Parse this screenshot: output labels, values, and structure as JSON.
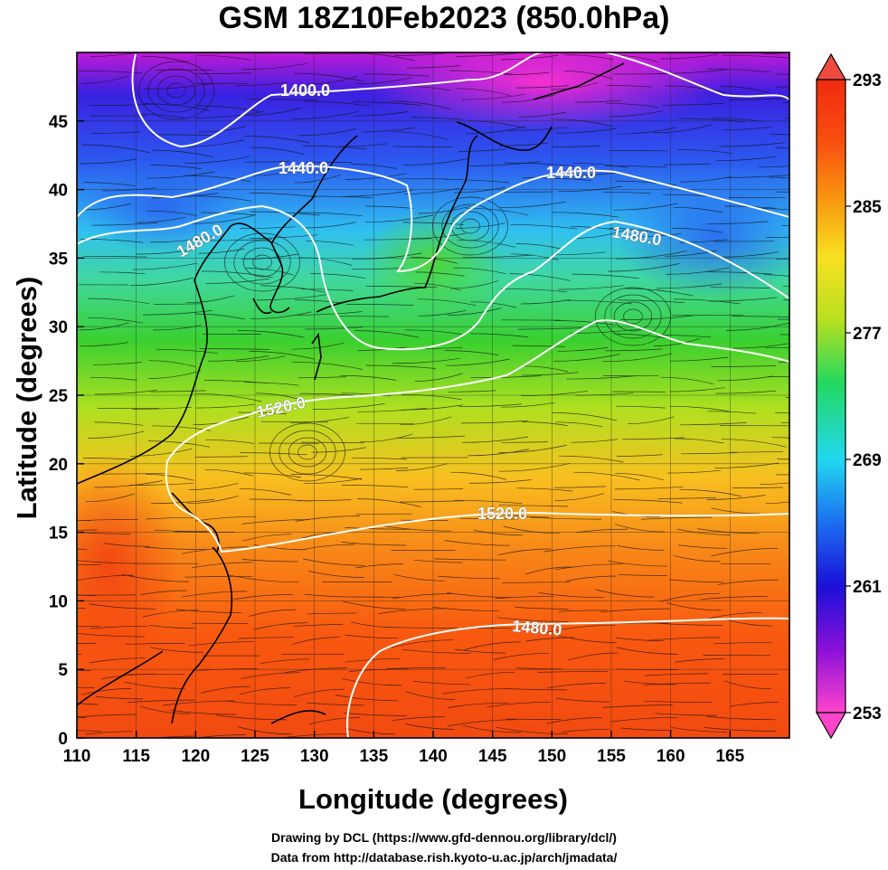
{
  "title": "GSM 18Z10Feb2023 (850.0hPa)",
  "map": {
    "xlabel": "Longitude (degrees)",
    "ylabel": "Latitude  (degrees)",
    "lon_range": [
      110,
      170
    ],
    "lat_range": [
      0,
      50
    ],
    "lon_ticks": [
      "110",
      "115",
      "120",
      "125",
      "130",
      "135",
      "140",
      "145",
      "150",
      "155",
      "160",
      "165"
    ],
    "lat_ticks": [
      "0",
      "5",
      "10",
      "15",
      "20",
      "25",
      "30",
      "35",
      "40",
      "45"
    ],
    "grid": true,
    "shaded_field_range_K": [
      253,
      293
    ],
    "contour_color": "#ffffff"
  },
  "colorbar": {
    "ticks": [
      "293",
      "285",
      "277",
      "269",
      "261",
      "253"
    ],
    "gradient": [
      "#ff44cc",
      "#8a10d8",
      "#1a10d8",
      "#1c6ef0",
      "#22d8f0",
      "#22d860",
      "#b8e020",
      "#f8e020",
      "#f8a010",
      "#f85010",
      "#f03010"
    ]
  },
  "contour_labels": {
    "c1": "1400.0",
    "c2": "1440.0",
    "c3": "1440.0",
    "c4": "1480.0",
    "c5": "1480.0",
    "c6": "1520.0",
    "c7": "1520.0",
    "c8": "1480.0"
  },
  "credits": {
    "line1": "Drawing by DCL (https://www.gfd-dennou.org/library/dcl/)",
    "line2": "Data from http://database.rish.kyoto-u.ac.jp/arch/jmadata/"
  }
}
